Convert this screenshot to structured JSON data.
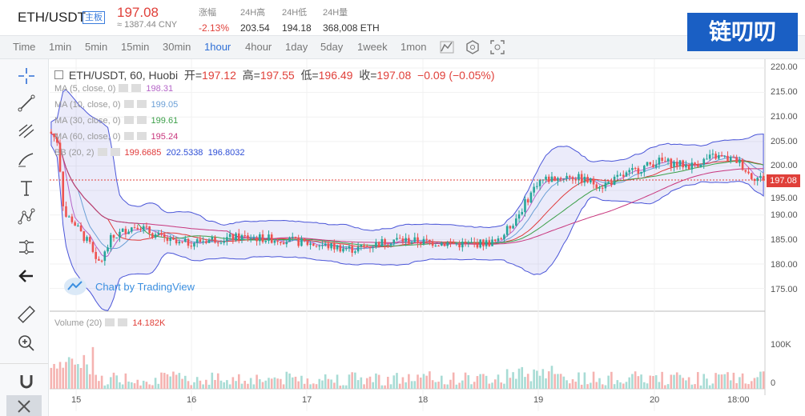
{
  "header": {
    "pair": "ETH/USDT",
    "tag": "主板",
    "price": "197.08",
    "cny": "≈ 1387.44 CNY",
    "stats": [
      {
        "label": "涨幅",
        "value": "-2.13%",
        "red": true
      },
      {
        "label": "24H高",
        "value": "203.54"
      },
      {
        "label": "24H低",
        "value": "194.18"
      },
      {
        "label": "24H量",
        "value": "368,008 ETH"
      }
    ]
  },
  "toolbar": {
    "timeframes": [
      "Time",
      "1min",
      "5min",
      "15min",
      "30min",
      "1hour",
      "4hour",
      "1day",
      "5day",
      "1week",
      "1mon"
    ],
    "active": "1hour",
    "icons": [
      "candle-type-icon",
      "indicator-icon",
      "screenshot-icon"
    ]
  },
  "left_tools": [
    "crosshair-icon",
    "trendline-icon",
    "fib-icon",
    "brush-icon",
    "text-icon",
    "pattern-icon",
    "measure-icon",
    "back-arrow-icon",
    "ruler-icon",
    "zoom-in-icon",
    "magnet-icon",
    "collapse-icon"
  ],
  "legend": {
    "title_prefix": "ETH/USDT, 60, Huobi",
    "open_label": "开=",
    "open": "197.12",
    "high_label": "高=",
    "high": "197.55",
    "low_label": "低=",
    "low": "196.49",
    "close_label": "收=",
    "close": "197.08",
    "change": "−0.09 (−0.05%)",
    "indicators": [
      {
        "name": "MA (5, close, 0)",
        "value": "198.31",
        "color": "#b565c8"
      },
      {
        "name": "MA (10, close, 0)",
        "value": "199.05",
        "color": "#6b9fd6"
      },
      {
        "name": "MA (30, close, 0)",
        "value": "199.61",
        "color": "#3da04a"
      },
      {
        "name": "MA (60, close, 0)",
        "value": "195.24",
        "color": "#c8367d"
      },
      {
        "name": "BB (20, 2)",
        "values": [
          "199.6685",
          "202.5338",
          "196.8032"
        ],
        "colors": [
          "#e03a3a",
          "#2f4fd6",
          "#2f4fd6"
        ]
      }
    ],
    "volume": {
      "name": "Volume (20)",
      "value": "14.182K"
    }
  },
  "tv_link": "Chart by TradingView",
  "price_axis": [
    "220.00",
    "215.00",
    "210.00",
    "205.00",
    "200.00",
    "195.00",
    "190.00",
    "185.00",
    "180.00",
    "175.00"
  ],
  "volume_axis": [
    "100K",
    "0"
  ],
  "time_axis": [
    "15",
    "16",
    "17",
    "18",
    "19",
    "20",
    "18:00"
  ],
  "last_price_tag": "197.08",
  "logo_text": "链叨叨",
  "chart_data": {
    "type": "candlestick",
    "ylim": [
      172,
      222
    ],
    "legend": "top-left",
    "grid": true
  }
}
